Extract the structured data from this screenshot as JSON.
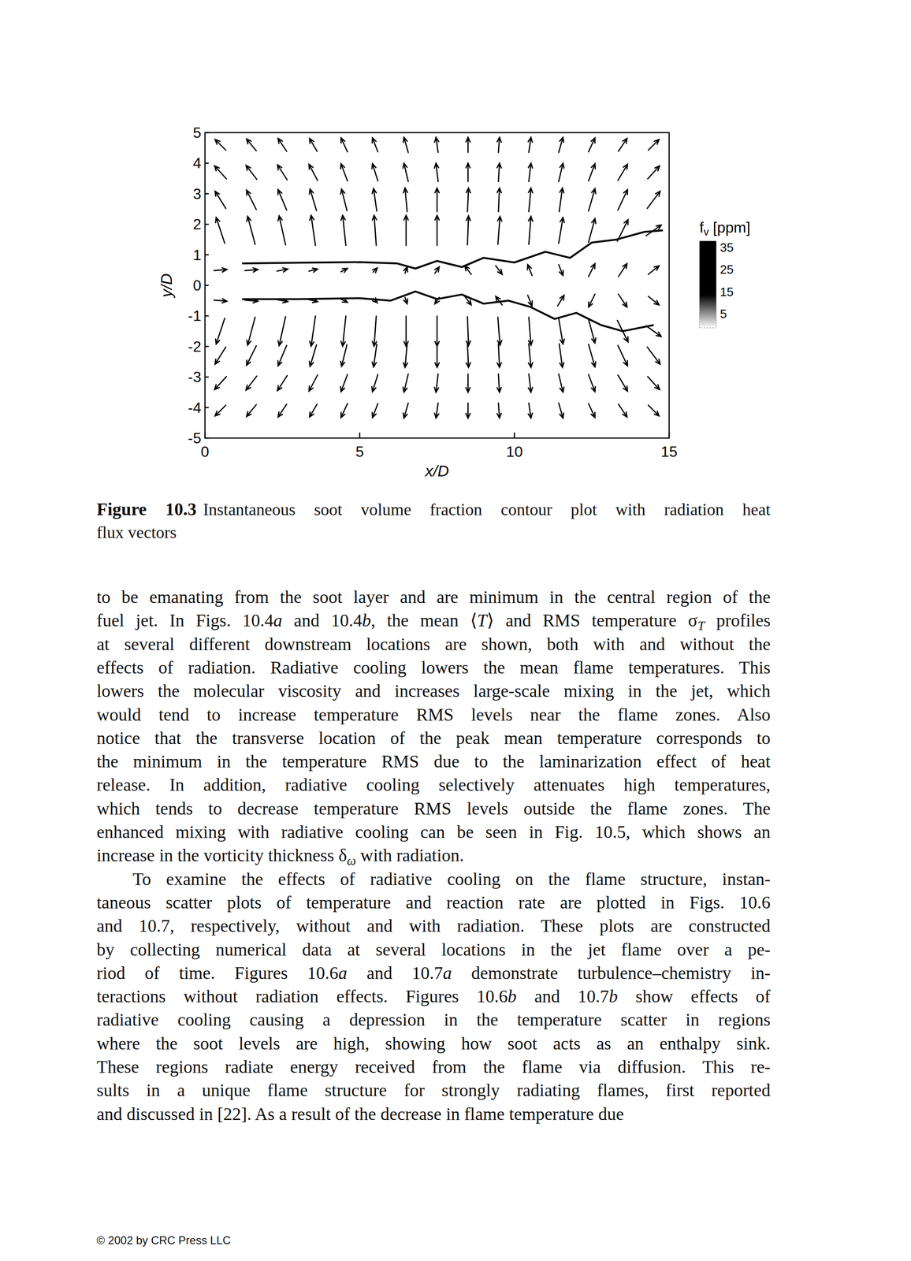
{
  "chart_data": {
    "type": "vector_field",
    "x_label": "x/D",
    "y_label": "y/D",
    "xlim": [
      0,
      15
    ],
    "ylim": [
      -5,
      5
    ],
    "xticks": [
      0,
      5,
      10,
      15
    ],
    "yticks": [
      5,
      4,
      3,
      2,
      1,
      0,
      -1,
      -2,
      -3,
      -4,
      -5
    ],
    "color": "#000000",
    "x": [
      0.5,
      1.5,
      2.5,
      3.5,
      4.5,
      5.5,
      6.5,
      7.5,
      8.5,
      9.5,
      10.5,
      11.5,
      12.5,
      13.5,
      14.5
    ],
    "y": [
      4.6,
      3.7,
      2.8,
      1.8,
      0.5,
      -0.5,
      -1.5,
      -2.3,
      -3.2,
      -4.1
    ],
    "u": [
      [
        -0.5,
        -0.45,
        -0.4,
        -0.35,
        -0.3,
        -0.25,
        -0.2,
        -0.1,
        0,
        0.05,
        0.1,
        0.2,
        0.3,
        0.4,
        0.5
      ],
      [
        -0.55,
        -0.5,
        -0.45,
        -0.4,
        -0.3,
        -0.25,
        -0.2,
        -0.1,
        0,
        0.05,
        0.1,
        0.2,
        0.3,
        0.45,
        0.55
      ],
      [
        -0.5,
        -0.45,
        -0.4,
        -0.3,
        -0.25,
        -0.15,
        -0.1,
        0,
        0.05,
        0.05,
        0.1,
        0.15,
        0.3,
        0.45,
        0.6
      ],
      [
        -0.4,
        -0.35,
        -0.3,
        -0.2,
        -0.15,
        -0.1,
        0,
        0,
        0.05,
        0.1,
        0.1,
        0.2,
        0.3,
        0.5,
        0.7
      ],
      [
        0.6,
        0.6,
        0.5,
        0.4,
        0.3,
        0.2,
        0.1,
        0.2,
        -0.3,
        0.3,
        -0.2,
        0.2,
        0.3,
        0.4,
        0.5
      ],
      [
        0.6,
        0.6,
        0.5,
        0.4,
        0.3,
        0.2,
        0.1,
        -0.2,
        0.3,
        -0.3,
        0.2,
        0.3,
        -0.3,
        0.4,
        0.5
      ],
      [
        -0.4,
        -0.35,
        -0.3,
        -0.2,
        -0.15,
        -0.1,
        0,
        0,
        0.05,
        0.1,
        0.1,
        0.2,
        0.3,
        0.5,
        0.7
      ],
      [
        -0.5,
        -0.45,
        -0.4,
        -0.3,
        -0.25,
        -0.15,
        -0.1,
        0,
        0.05,
        0.05,
        0.1,
        0.15,
        0.3,
        0.45,
        0.6
      ],
      [
        -0.55,
        -0.5,
        -0.45,
        -0.4,
        -0.3,
        -0.25,
        -0.2,
        -0.1,
        0,
        0.05,
        0.1,
        0.2,
        0.3,
        0.45,
        0.55
      ],
      [
        -0.5,
        -0.45,
        -0.4,
        -0.35,
        -0.3,
        -0.25,
        -0.2,
        -0.1,
        0,
        0.05,
        0.1,
        0.2,
        0.3,
        0.4,
        0.5
      ]
    ],
    "v": [
      [
        0.5,
        0.55,
        0.6,
        0.6,
        0.65,
        0.65,
        0.7,
        0.7,
        0.7,
        0.7,
        0.7,
        0.7,
        0.65,
        0.6,
        0.5
      ],
      [
        0.6,
        0.65,
        0.7,
        0.75,
        0.8,
        0.8,
        0.85,
        0.85,
        0.85,
        0.85,
        0.85,
        0.85,
        0.8,
        0.75,
        0.6
      ],
      [
        0.8,
        0.9,
        0.95,
        1.0,
        1.0,
        1.05,
        1.1,
        1.1,
        1.1,
        1.1,
        1.1,
        1.1,
        1.05,
        0.95,
        0.8
      ],
      [
        1.2,
        1.3,
        1.35,
        1.4,
        1.4,
        1.4,
        1.4,
        1.4,
        1.35,
        1.3,
        1.3,
        1.2,
        1.1,
        1.0,
        0.5
      ],
      [
        0.05,
        0.05,
        0.1,
        0.1,
        0.15,
        0.2,
        0.3,
        0.3,
        0.4,
        -0.4,
        0.5,
        -0.5,
        0.6,
        0.6,
        0.4
      ],
      [
        -0.05,
        -0.05,
        -0.1,
        -0.1,
        -0.15,
        -0.2,
        -0.3,
        -0.3,
        -0.4,
        0.4,
        -0.5,
        0.5,
        -0.6,
        -0.6,
        -0.4
      ],
      [
        -1.2,
        -1.3,
        -1.35,
        -1.4,
        -1.4,
        -1.4,
        -1.4,
        -1.4,
        -1.35,
        -1.3,
        -1.3,
        -1.2,
        -1.1,
        -1.0,
        -0.5
      ],
      [
        -0.8,
        -0.9,
        -0.95,
        -1.0,
        -1.0,
        -1.05,
        -1.1,
        -1.1,
        -1.1,
        -1.1,
        -1.1,
        -1.1,
        -1.05,
        -0.95,
        -0.8
      ],
      [
        -0.6,
        -0.65,
        -0.7,
        -0.75,
        -0.8,
        -0.8,
        -0.85,
        -0.85,
        -0.85,
        -0.85,
        -0.85,
        -0.85,
        -0.8,
        -0.75,
        -0.6
      ],
      [
        -0.5,
        -0.55,
        -0.6,
        -0.6,
        -0.65,
        -0.65,
        -0.7,
        -0.7,
        -0.7,
        -0.7,
        -0.7,
        -0.7,
        -0.65,
        -0.6,
        -0.5
      ]
    ],
    "contours": [
      {
        "x": [
          1.2,
          3,
          5,
          6.2,
          6.8,
          7.5,
          8.3,
          9,
          10,
          11,
          11.8,
          12.5,
          13.3,
          14.2,
          14.8
        ],
        "y": [
          0.72,
          0.74,
          0.76,
          0.72,
          0.55,
          0.8,
          0.6,
          0.9,
          0.75,
          1.1,
          0.9,
          1.4,
          1.5,
          1.75,
          1.8
        ]
      },
      {
        "x": [
          1.2,
          3,
          5,
          6,
          6.8,
          7.5,
          8.3,
          9,
          9.8,
          10.5,
          11.3,
          12,
          12.8,
          13.5,
          14.5
        ],
        "y": [
          -0.45,
          -0.45,
          -0.42,
          -0.5,
          -0.2,
          -0.45,
          -0.3,
          -0.6,
          -0.5,
          -0.7,
          -1.1,
          -0.9,
          -1.3,
          -1.5,
          -1.3
        ]
      }
    ],
    "colorbar": {
      "label": [
        "f",
        {
          "sub": "v"
        },
        " [ppm]"
      ],
      "range": [
        5,
        35
      ],
      "ticks": [
        35,
        25,
        15,
        5
      ]
    }
  },
  "caption": {
    "label": "Figure 10.3",
    "lines": [
      "Instantaneous soot volume fraction contour plot with radiation heat",
      "flux vectors"
    ]
  },
  "body": {
    "paragraphs": [
      {
        "indent": false,
        "lines": [
          "to be emanating from the soot layer and are minimum in the central region of the",
          [
            "fuel jet. In Figs. 10.4",
            {
              "i": "a"
            },
            " and 10.4",
            {
              "i": "b"
            },
            ", the mean ⟨",
            {
              "i": "T"
            },
            "⟩ and RMS temperature σ",
            {
              "sub": "T"
            },
            " profiles"
          ],
          "at several different downstream locations are shown, both with and without the",
          "effects of radiation. Radiative cooling lowers the mean flame temperatures. This",
          "lowers the molecular viscosity and increases large-scale mixing in the jet, which",
          "would tend to increase temperature RMS levels near the flame zones. Also",
          "notice that the transverse location of the peak mean temperature corresponds to",
          "the minimum in the temperature RMS due to the laminarization effect of heat",
          "release. In addition, radiative cooling selectively attenuates high temperatures,",
          "which tends to decrease temperature RMS levels outside the flame zones. The",
          "enhanced mixing with radiative cooling can be seen in Fig. 10.5, which shows an",
          [
            "increase in the vorticity thickness δ",
            {
              "sub": "ω"
            },
            " with radiation."
          ]
        ]
      },
      {
        "indent": true,
        "lines": [
          "To examine the effects of radiative cooling on the flame structure, instan-",
          "taneous scatter plots of temperature and reaction rate are plotted in Figs. 10.6",
          "and 10.7, respectively, without and with radiation. These plots are constructed",
          "by collecting numerical data at several locations in the jet flame over a pe-",
          [
            "riod of time. Figures 10.6",
            {
              "i": "a"
            },
            " and 10.7",
            {
              "i": "a"
            },
            " demonstrate turbulence–chemistry in-"
          ],
          [
            "teractions without radiation effects. Figures 10.6",
            {
              "i": "b"
            },
            " and 10.7",
            {
              "i": "b"
            },
            " show effects of"
          ],
          "radiative cooling causing a depression in the temperature scatter in regions",
          "where the soot levels are high, showing how soot acts as an enthalpy sink.",
          "These regions radiate energy received from the flame via diffusion. This re-",
          "sults in a unique flame structure for strongly radiating flames, first reported",
          "and discussed in [22]. As a result of the decrease in flame temperature due"
        ]
      }
    ]
  },
  "footer": "© 2002 by CRC Press LLC"
}
